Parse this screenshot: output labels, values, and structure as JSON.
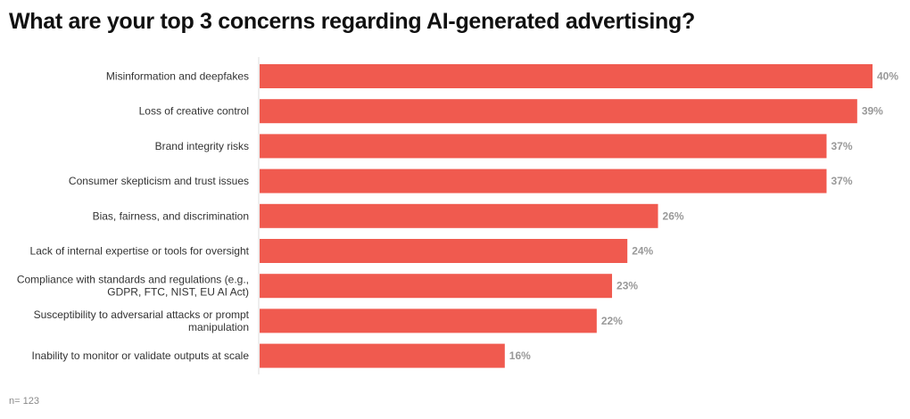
{
  "chart_data": {
    "type": "bar",
    "orientation": "horizontal",
    "title": "What are your top 3 concerns regarding AI-generated advertising?",
    "categories": [
      [
        "Misinformation and deepfakes"
      ],
      [
        "Loss of creative control"
      ],
      [
        "Brand integrity risks"
      ],
      [
        "Consumer skepticism and trust issues"
      ],
      [
        "Bias, fairness, and discrimination"
      ],
      [
        "Lack of internal expertise or tools for oversight"
      ],
      [
        "Compliance with standards and regulations (e.g.,",
        "GDPR, FTC, NIST, EU AI Act)"
      ],
      [
        "Susceptibility to adversarial attacks or prompt",
        "manipulation"
      ],
      [
        "Inability to monitor or validate outputs at scale"
      ]
    ],
    "values": [
      40,
      39,
      37,
      37,
      26,
      24,
      23,
      22,
      16
    ],
    "value_labels": [
      "40%",
      "39%",
      "37%",
      "37%",
      "26%",
      "24%",
      "23%",
      "22%",
      "16%"
    ],
    "unit": "%",
    "xlim": [
      0,
      40
    ],
    "grid": false,
    "bar_color": "#f05a4f",
    "note": "n= 123"
  }
}
